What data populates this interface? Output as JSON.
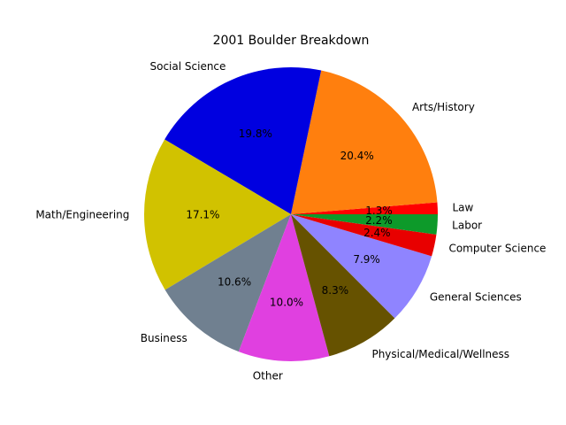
{
  "chart_data": {
    "type": "pie",
    "title": "2001 Boulder Breakdown",
    "start_angle_deg": 0,
    "direction": "counterclockwise",
    "slices": [
      {
        "label": "Law",
        "value": 1.3,
        "pct_label": "1.3%",
        "color": "#ff0000"
      },
      {
        "label": "Arts/History",
        "value": 20.4,
        "pct_label": "20.4%",
        "color": "#ff7f0e"
      },
      {
        "label": "Social Science",
        "value": 19.8,
        "pct_label": "19.8%",
        "color": "#0000e0"
      },
      {
        "label": "Math/Engineering",
        "value": 17.1,
        "pct_label": "17.1%",
        "color": "#d1c200"
      },
      {
        "label": "Business",
        "value": 10.6,
        "pct_label": "10.6%",
        "color": "#708090"
      },
      {
        "label": "Other",
        "value": 10.0,
        "pct_label": "10.0%",
        "color": "#e040e0"
      },
      {
        "label": "Physical/Medical/Wellness",
        "value": 8.3,
        "pct_label": "8.3%",
        "color": "#665200"
      },
      {
        "label": "General Sciences",
        "value": 7.9,
        "pct_label": "7.9%",
        "color": "#8f84ff"
      },
      {
        "label": "Computer Science",
        "value": 2.4,
        "pct_label": "2.4%",
        "color": "#e80000"
      },
      {
        "label": "Labor",
        "value": 2.2,
        "pct_label": "2.2%",
        "color": "#0d9a2a"
      }
    ]
  }
}
